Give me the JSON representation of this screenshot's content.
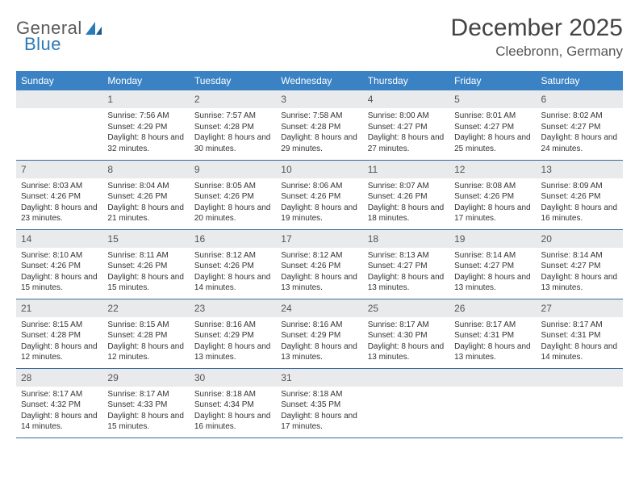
{
  "brand": {
    "part1": "General",
    "part2": "Blue"
  },
  "title": "December 2025",
  "location": "Cleebronn, Germany",
  "colors": {
    "header_bg": "#3a82c4",
    "daynum_bg": "#e9eaec",
    "row_border": "#3a6a9a",
    "logo_blue": "#2a7ab8"
  },
  "weekdays": [
    "Sunday",
    "Monday",
    "Tuesday",
    "Wednesday",
    "Thursday",
    "Friday",
    "Saturday"
  ],
  "layout": {
    "first_offset": 1,
    "days_in_month": 31,
    "rows": 5,
    "cols": 7
  },
  "days": [
    {
      "n": 1,
      "sunrise": "7:56 AM",
      "sunset": "4:29 PM",
      "dl": "8 hours and 32 minutes."
    },
    {
      "n": 2,
      "sunrise": "7:57 AM",
      "sunset": "4:28 PM",
      "dl": "8 hours and 30 minutes."
    },
    {
      "n": 3,
      "sunrise": "7:58 AM",
      "sunset": "4:28 PM",
      "dl": "8 hours and 29 minutes."
    },
    {
      "n": 4,
      "sunrise": "8:00 AM",
      "sunset": "4:27 PM",
      "dl": "8 hours and 27 minutes."
    },
    {
      "n": 5,
      "sunrise": "8:01 AM",
      "sunset": "4:27 PM",
      "dl": "8 hours and 25 minutes."
    },
    {
      "n": 6,
      "sunrise": "8:02 AM",
      "sunset": "4:27 PM",
      "dl": "8 hours and 24 minutes."
    },
    {
      "n": 7,
      "sunrise": "8:03 AM",
      "sunset": "4:26 PM",
      "dl": "8 hours and 23 minutes."
    },
    {
      "n": 8,
      "sunrise": "8:04 AM",
      "sunset": "4:26 PM",
      "dl": "8 hours and 21 minutes."
    },
    {
      "n": 9,
      "sunrise": "8:05 AM",
      "sunset": "4:26 PM",
      "dl": "8 hours and 20 minutes."
    },
    {
      "n": 10,
      "sunrise": "8:06 AM",
      "sunset": "4:26 PM",
      "dl": "8 hours and 19 minutes."
    },
    {
      "n": 11,
      "sunrise": "8:07 AM",
      "sunset": "4:26 PM",
      "dl": "8 hours and 18 minutes."
    },
    {
      "n": 12,
      "sunrise": "8:08 AM",
      "sunset": "4:26 PM",
      "dl": "8 hours and 17 minutes."
    },
    {
      "n": 13,
      "sunrise": "8:09 AM",
      "sunset": "4:26 PM",
      "dl": "8 hours and 16 minutes."
    },
    {
      "n": 14,
      "sunrise": "8:10 AM",
      "sunset": "4:26 PM",
      "dl": "8 hours and 15 minutes."
    },
    {
      "n": 15,
      "sunrise": "8:11 AM",
      "sunset": "4:26 PM",
      "dl": "8 hours and 15 minutes."
    },
    {
      "n": 16,
      "sunrise": "8:12 AM",
      "sunset": "4:26 PM",
      "dl": "8 hours and 14 minutes."
    },
    {
      "n": 17,
      "sunrise": "8:12 AM",
      "sunset": "4:26 PM",
      "dl": "8 hours and 13 minutes."
    },
    {
      "n": 18,
      "sunrise": "8:13 AM",
      "sunset": "4:27 PM",
      "dl": "8 hours and 13 minutes."
    },
    {
      "n": 19,
      "sunrise": "8:14 AM",
      "sunset": "4:27 PM",
      "dl": "8 hours and 13 minutes."
    },
    {
      "n": 20,
      "sunrise": "8:14 AM",
      "sunset": "4:27 PM",
      "dl": "8 hours and 13 minutes."
    },
    {
      "n": 21,
      "sunrise": "8:15 AM",
      "sunset": "4:28 PM",
      "dl": "8 hours and 12 minutes."
    },
    {
      "n": 22,
      "sunrise": "8:15 AM",
      "sunset": "4:28 PM",
      "dl": "8 hours and 12 minutes."
    },
    {
      "n": 23,
      "sunrise": "8:16 AM",
      "sunset": "4:29 PM",
      "dl": "8 hours and 13 minutes."
    },
    {
      "n": 24,
      "sunrise": "8:16 AM",
      "sunset": "4:29 PM",
      "dl": "8 hours and 13 minutes."
    },
    {
      "n": 25,
      "sunrise": "8:17 AM",
      "sunset": "4:30 PM",
      "dl": "8 hours and 13 minutes."
    },
    {
      "n": 26,
      "sunrise": "8:17 AM",
      "sunset": "4:31 PM",
      "dl": "8 hours and 13 minutes."
    },
    {
      "n": 27,
      "sunrise": "8:17 AM",
      "sunset": "4:31 PM",
      "dl": "8 hours and 14 minutes."
    },
    {
      "n": 28,
      "sunrise": "8:17 AM",
      "sunset": "4:32 PM",
      "dl": "8 hours and 14 minutes."
    },
    {
      "n": 29,
      "sunrise": "8:17 AM",
      "sunset": "4:33 PM",
      "dl": "8 hours and 15 minutes."
    },
    {
      "n": 30,
      "sunrise": "8:18 AM",
      "sunset": "4:34 PM",
      "dl": "8 hours and 16 minutes."
    },
    {
      "n": 31,
      "sunrise": "8:18 AM",
      "sunset": "4:35 PM",
      "dl": "8 hours and 17 minutes."
    }
  ],
  "labels": {
    "sunrise": "Sunrise:",
    "sunset": "Sunset:",
    "daylight": "Daylight:"
  }
}
